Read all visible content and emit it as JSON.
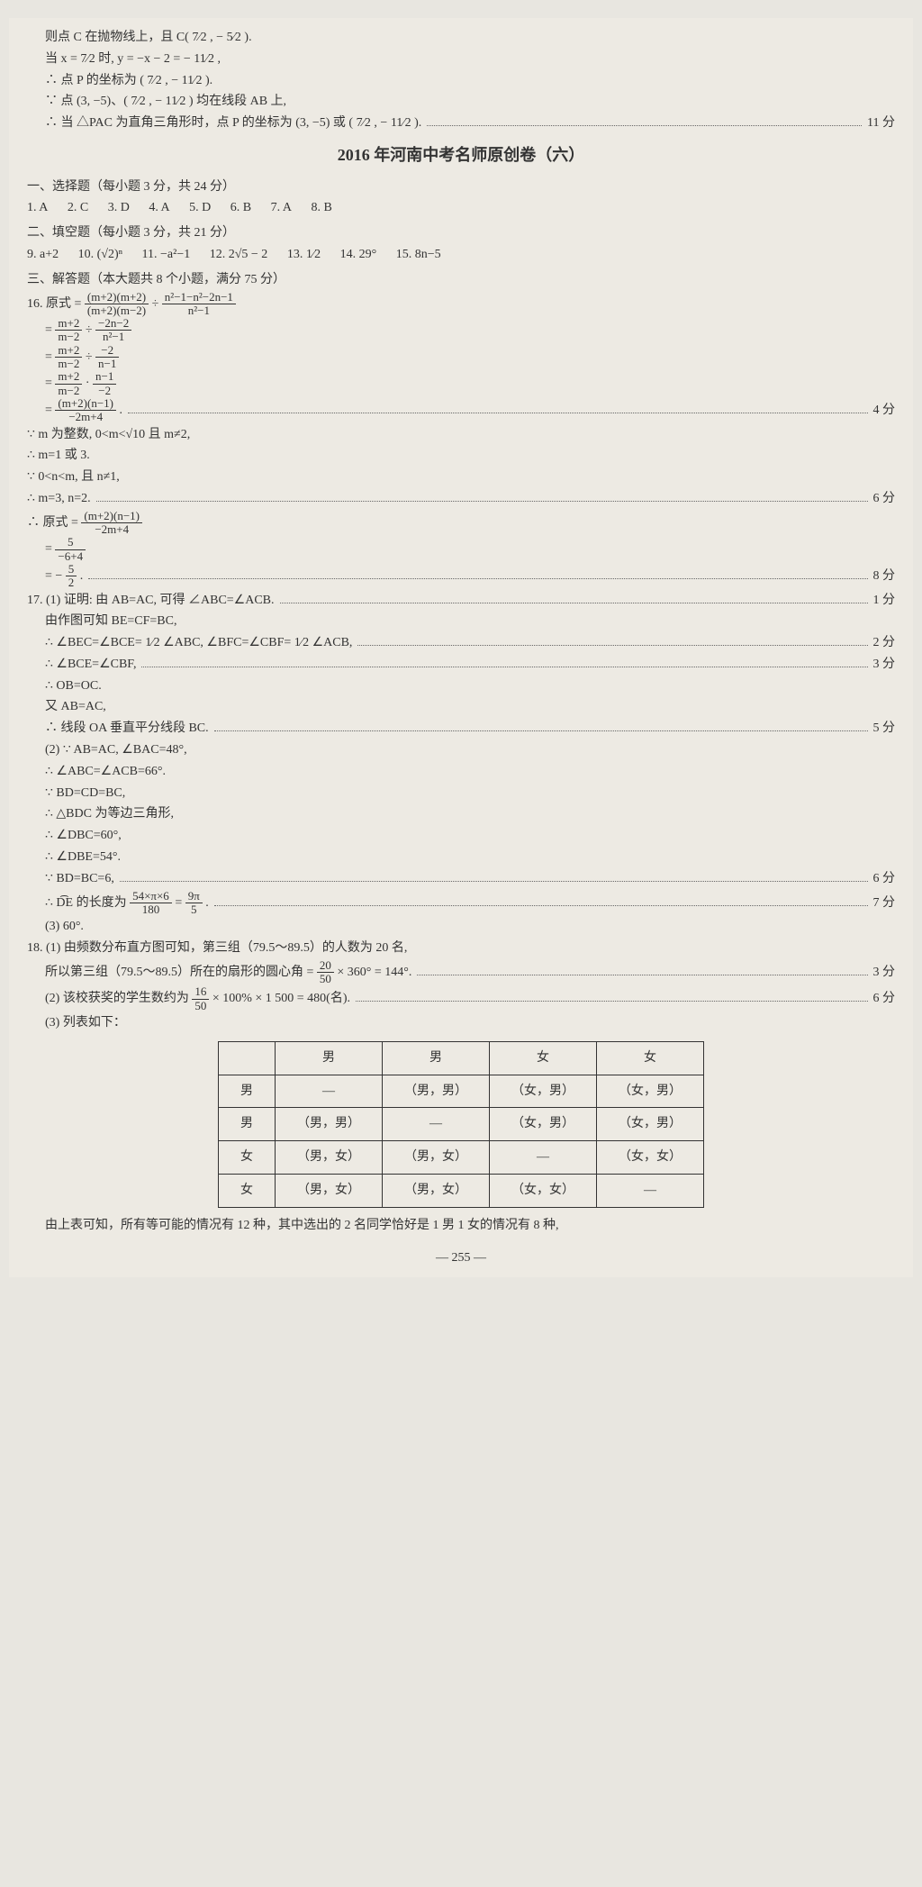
{
  "top": {
    "l1": "则点 C 在抛物线上，且 C( 7⁄2 , − 5⁄2 ).",
    "l2": "当 x = 7⁄2 时, y = −x − 2 = − 11⁄2 ,",
    "l3": "∴ 点 P 的坐标为 ( 7⁄2 , − 11⁄2 ).",
    "l4": "∵ 点 (3, −5)、( 7⁄2 , − 11⁄2 ) 均在线段 AB 上,",
    "l5": "∴ 当 △PAC 为直角三角形时，点 P 的坐标为 (3, −5) 或 ( 7⁄2 , − 11⁄2 ).",
    "s5": "11 分"
  },
  "title": "2016 年河南中考名师原创卷（六）",
  "sec1_head": "一、选择题（每小题 3 分，共 24 分）",
  "sec1_ans": [
    "1. A",
    "2. C",
    "3. D",
    "4. A",
    "5. D",
    "6. B",
    "7. A",
    "8. B"
  ],
  "sec2_head": "二、填空题（每小题 3 分，共 21 分）",
  "sec2_ans": [
    "9. a+2",
    "10. (√2)ⁿ",
    "11. −a²−1",
    "12. 2√5 − 2",
    "13. 1⁄2",
    "14. 29°",
    "15. 8n−5"
  ],
  "sec3_head": "三、解答题（本大题共 8 个小题，满分 75 分）",
  "q16": {
    "l1_pre": "16. 原式 = ",
    "l1_num": "(m+2)(m+2)",
    "l1_den": "(m+2)(m−2)",
    "l1_mid": " ÷ ",
    "l1_num2": "n²−1−n²−2n−1",
    "l1_den2": "n²−1",
    "l2_num": "m+2",
    "l2_den": "m−2",
    "l2_mid": " ÷ ",
    "l2_num2": "−2n−2",
    "l2_den2": "n²−1",
    "l3_num": "m+2",
    "l3_den": "m−2",
    "l3_mid": " ÷ ",
    "l3_num2": "−2",
    "l3_den2": "n−1",
    "l4_num": "m+2",
    "l4_den": "m−2",
    "l4_mid": " · ",
    "l4_num2": "n−1",
    "l4_den2": "−2",
    "l5_num": "(m+2)(n−1)",
    "l5_den": "−2m+4",
    "l5_post": ".",
    "s5": "4 分",
    "l6": "∵ m 为整数, 0<m<√10 且 m≠2,",
    "l7": "∴ m=1 或 3.",
    "l8": "∵ 0<n<m, 且 n≠1,",
    "l9": "∴ m=3, n=2.",
    "s9": "6 分",
    "l10_pre": "∴ 原式 = ",
    "l10_num": "(m+2)(n−1)",
    "l10_den": "−2m+4",
    "l11_num": "5",
    "l11_den": "−6+4",
    "l12_pre": "= − ",
    "l12_num": "5",
    "l12_den": "2",
    "l12_post": ".",
    "s12": "8 分"
  },
  "q17": {
    "l1": "17. (1) 证明: 由 AB=AC, 可得 ∠ABC=∠ACB.",
    "s1": "1 分",
    "l2": "由作图可知 BE=CF=BC,",
    "l3": "∴ ∠BEC=∠BCE= 1⁄2 ∠ABC, ∠BFC=∠CBF= 1⁄2 ∠ACB,",
    "s3": "2 分",
    "l4": "∴ ∠BCE=∠CBF,",
    "s4": "3 分",
    "l5": "∴ OB=OC.",
    "l6": "又 AB=AC,",
    "l7": "∴ 线段 OA 垂直平分线段 BC.",
    "s7": "5 分",
    "l8": "(2) ∵ AB=AC, ∠BAC=48°,",
    "l9": "∴ ∠ABC=∠ACB=66°.",
    "l10": "∵ BD=CD=BC,",
    "l11": "∴ △BDC 为等边三角形,",
    "l12": "∴ ∠DBC=60°,",
    "l13": "∴ ∠DBE=54°.",
    "l14": "∵ BD=BC=6,",
    "s14": "6 分",
    "l15_pre": "∴ D͡E 的长度为 ",
    "l15_num": "54×π×6",
    "l15_den": "180",
    "l15_mid": " = ",
    "l15_num2": "9π",
    "l15_den2": "5",
    "l15_post": ".",
    "s15": "7 分",
    "l16": "(3) 60°."
  },
  "q18": {
    "l1": "18. (1) 由频数分布直方图可知，第三组（79.5～89.5）的人数为 20 名,",
    "l2_pre": "所以第三组（79.5～89.5）所在的扇形的圆心角 = ",
    "l2_num": "20",
    "l2_den": "50",
    "l2_post": " × 360° = 144°.",
    "s2": "3 分",
    "l3_pre": "(2) 该校获奖的学生数约为 ",
    "l3_num": "16",
    "l3_den": "50",
    "l3_post": " × 100% × 1 500 = 480(名).",
    "s3": "6 分",
    "l4": "(3) 列表如下：",
    "table_head": [
      "",
      "男",
      "男",
      "女",
      "女"
    ],
    "table_rows": [
      [
        "男",
        "—",
        "（男，男）",
        "（女，男）",
        "（女，男）"
      ],
      [
        "男",
        "（男，男）",
        "—",
        "（女，男）",
        "（女，男）"
      ],
      [
        "女",
        "（男，女）",
        "（男，女）",
        "—",
        "（女，女）"
      ],
      [
        "女",
        "（男，女）",
        "（男，女）",
        "（女，女）",
        "—"
      ]
    ],
    "l5": "由上表可知，所有等可能的情况有 12 种，其中选出的 2 名同学恰好是 1 男 1 女的情况有 8 种,"
  },
  "pagefoot": "— 255 —"
}
